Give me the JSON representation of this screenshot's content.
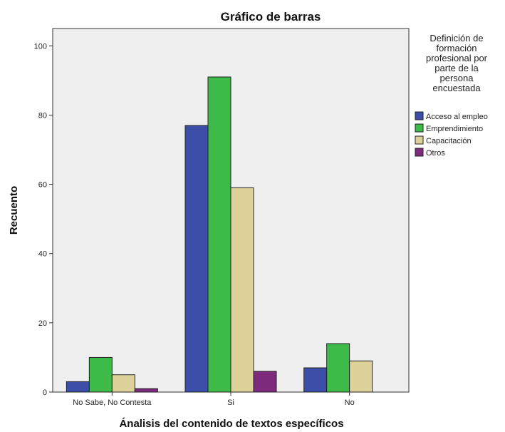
{
  "chart_data": {
    "type": "bar",
    "title": "Gráfico de barras",
    "xlabel": "Ánalisis del contenido de textos específicos",
    "ylabel": "Recuento",
    "categories": [
      "No Sabe, No Contesta",
      "Si",
      "No"
    ],
    "ylim": [
      0,
      105
    ],
    "yticks": [
      0,
      20,
      40,
      60,
      80,
      100
    ],
    "grid": false,
    "legend": {
      "placement": "right",
      "title_lines": [
        "Definición de",
        "formación",
        "profesional por",
        "parte de la",
        "persona",
        "encuestada"
      ]
    },
    "series": [
      {
        "name": "Acceso al empleo",
        "color": "#3c4ea8",
        "values": [
          3,
          77,
          7
        ]
      },
      {
        "name": "Emprendimiento",
        "color": "#3dbb48",
        "values": [
          10,
          91,
          14
        ]
      },
      {
        "name": "Capacitación",
        "color": "#ddd39a",
        "values": [
          5,
          59,
          9
        ]
      },
      {
        "name": "Otros",
        "color": "#7d2a7d",
        "values": [
          1,
          6,
          0
        ]
      }
    ],
    "colors": {
      "plot_background": "#efefef",
      "axis": "#333333",
      "bar_outline": "#222222"
    }
  }
}
